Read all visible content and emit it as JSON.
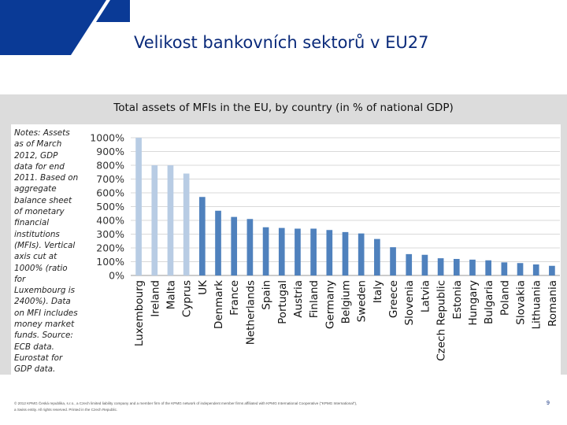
{
  "slide": {
    "title": "Velikost bankovních sektorů v EU27",
    "page_number": "9",
    "notes": "Notes: Assets as of March 2012, GDP data for end 2011. Based on aggregate balance sheet of monetary financial institutions (MFIs). Vertical axis cut at 1000% (ratio for Luxembourg is 2400%). Data on MFI includes money market funds. Source: ECB data. Eurostat for GDP data.",
    "footer_line1": "© 2012 KPMG Česká republika, s.r.o., a Czech limited liability company and a member firm of the KPMG network of independent member firms affiliated with KPMG International Cooperative (\"KPMG International\"),",
    "footer_line2": "a Swiss entity. All rights reserved. Printed in the Czech Republic."
  },
  "colors": {
    "brand_blue": "#0a3a96",
    "bar_dark": "#4f81bd",
    "bar_light": "#b8cce4",
    "panel_gray": "#dcdcdc"
  },
  "chart_data": {
    "type": "bar",
    "title": "Total assets of MFIs in the EU, by country (in % of national GDP)",
    "categories": [
      "Luxembourg",
      "Ireland",
      "Malta",
      "Cyprus",
      "UK",
      "Denmark",
      "France",
      "Netherlands",
      "Spain",
      "Portugal",
      "Austria",
      "Finland",
      "Germany",
      "Belgium",
      "Sweden",
      "Italy",
      "Greece",
      "Slovenia",
      "Latvia",
      "Czech Republic",
      "Estonia",
      "Hungary",
      "Bulgaria",
      "Poland",
      "Slovakia",
      "Lithuania",
      "Romania"
    ],
    "values": [
      1000,
      800,
      800,
      740,
      570,
      470,
      425,
      410,
      350,
      345,
      340,
      340,
      330,
      315,
      305,
      265,
      205,
      155,
      150,
      125,
      120,
      115,
      110,
      95,
      90,
      80,
      70
    ],
    "highlighted_categories": [
      "Luxembourg",
      "Ireland",
      "Malta",
      "Cyprus"
    ],
    "yticks": [
      "0%",
      "100%",
      "200%",
      "300%",
      "400%",
      "500%",
      "600%",
      "700%",
      "800%",
      "900%",
      "1000%"
    ],
    "ylim": [
      0,
      1000
    ],
    "grid": true,
    "legend": "none"
  }
}
